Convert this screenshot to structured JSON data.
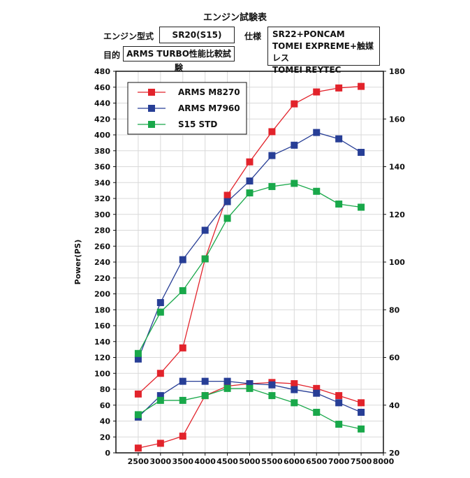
{
  "header": {
    "title": "エンジン試験表",
    "engine_type_label": "エンジン型式",
    "engine_type_value": "SR20(S15)",
    "spec_label": "仕様",
    "spec_lines": [
      "SR22+PONCAM",
      "TOMEI EXPREME+触媒レス",
      "TOMEI REYTEC"
    ],
    "purpose_label": "目的",
    "purpose_value": "ARMS TURBO性能比較試験"
  },
  "chart_data": {
    "type": "line",
    "title": "",
    "xlabel": "",
    "ylabel": "Power(PS)",
    "x": [
      2500,
      3000,
      3500,
      4000,
      4500,
      5000,
      5500,
      6000,
      6500,
      7000,
      7500
    ],
    "xlim": [
      2000,
      8000
    ],
    "x_ticks": [
      2500,
      3000,
      3500,
      4000,
      4500,
      5000,
      5500,
      6000,
      6500,
      7000,
      7500,
      8000
    ],
    "ylim": [
      0,
      480
    ],
    "y_ticks": [
      0,
      20,
      40,
      60,
      80,
      100,
      120,
      140,
      160,
      180,
      200,
      220,
      240,
      260,
      280,
      300,
      320,
      340,
      360,
      380,
      400,
      420,
      440,
      460,
      480
    ],
    "y2lim": [
      20,
      180
    ],
    "y2_ticks": [
      20,
      40,
      60,
      80,
      100,
      120,
      140,
      160,
      180
    ],
    "grid": true,
    "legend_position": "top-left",
    "series": [
      {
        "name": "ARMS M8270",
        "color": "#e2232b",
        "axis": "left",
        "marker": "square",
        "values": [
          74,
          100,
          132,
          244,
          324,
          366,
          404,
          439,
          454,
          459,
          461
        ]
      },
      {
        "name": "ARMS M7960",
        "color": "#273e96",
        "axis": "left",
        "marker": "square",
        "values": [
          118,
          189,
          243,
          280,
          316,
          342,
          374,
          387,
          403,
          395,
          378
        ]
      },
      {
        "name": "S15 STD",
        "color": "#19a84a",
        "axis": "left",
        "marker": "square",
        "values": [
          125,
          177,
          204,
          244,
          295,
          327,
          335,
          339,
          329,
          313,
          309
        ]
      },
      {
        "name": "",
        "color": "#e2232b",
        "axis": "right",
        "marker": "square",
        "legend": false,
        "values": [
          22,
          24,
          27,
          44,
          48,
          49,
          49.5,
          49,
          47,
          44,
          41
        ]
      },
      {
        "name": "",
        "color": "#273e96",
        "axis": "right",
        "marker": "square",
        "legend": false,
        "values": [
          35,
          44,
          50,
          50,
          50,
          49,
          48.5,
          46.5,
          45,
          41,
          37
        ]
      },
      {
        "name": "",
        "color": "#19a84a",
        "axis": "right",
        "marker": "square",
        "legend": false,
        "values": [
          36,
          42,
          42,
          44,
          47,
          47,
          44,
          41,
          37,
          32,
          30
        ]
      }
    ]
  }
}
